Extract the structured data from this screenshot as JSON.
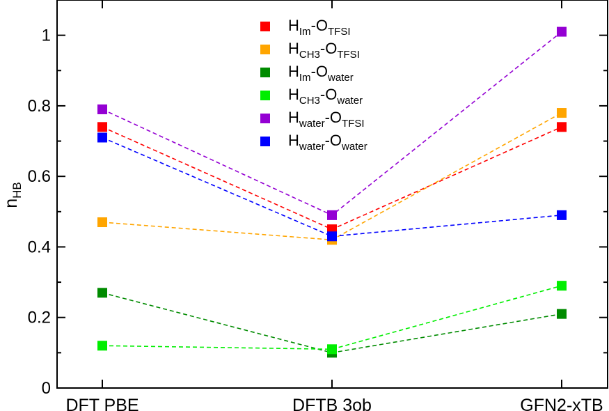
{
  "chart_data": {
    "type": "line",
    "title": "",
    "xlabel": "",
    "ylabel": {
      "main": "n",
      "sub": "HB"
    },
    "categories": [
      "DFT PBE",
      "DFTB 3ob",
      "GFN2-xTB"
    ],
    "ylim": [
      0,
      1.1
    ],
    "yticks": [
      0,
      0.2,
      0.4,
      0.6,
      0.8,
      1
    ],
    "ytick_labels": [
      "0",
      "0.2",
      "0.4",
      "0.6",
      "0.8",
      "1"
    ],
    "grid": false,
    "legend_position": "top-center",
    "series": [
      {
        "name": "H_Im-O_TFSI",
        "label_main1": "H",
        "label_sub1": "Im",
        "label_main2": "-O",
        "label_sub2": "TFSI",
        "color": "#ff0000",
        "values": [
          0.74,
          0.45,
          0.74
        ]
      },
      {
        "name": "H_CH3-O_TFSI",
        "label_main1": "H",
        "label_sub1": "CH3",
        "label_main2": "-O",
        "label_sub2": "TFSI",
        "color": "#ffa500",
        "values": [
          0.47,
          0.42,
          0.78
        ]
      },
      {
        "name": "H_Im-O_water",
        "label_main1": "H",
        "label_sub1": "Im",
        "label_main2": "-O",
        "label_sub2": "water",
        "color": "#008b00",
        "values": [
          0.27,
          0.1,
          0.21
        ]
      },
      {
        "name": "H_CH3-O_water",
        "label_main1": "H",
        "label_sub1": "CH3",
        "label_main2": "-O",
        "label_sub2": "water",
        "color": "#00ee00",
        "values": [
          0.12,
          0.11,
          0.29
        ]
      },
      {
        "name": "H_water-O_TFSI",
        "label_main1": "H",
        "label_sub1": "water",
        "label_main2": "-O",
        "label_sub2": "TFSI",
        "color": "#9400d3",
        "values": [
          0.79,
          0.49,
          1.01
        ]
      },
      {
        "name": "H_water-O_water",
        "label_main1": "H",
        "label_sub1": "water",
        "label_main2": "-O",
        "label_sub2": "water",
        "color": "#0000ff",
        "values": [
          0.71,
          0.43,
          0.49
        ]
      }
    ]
  }
}
